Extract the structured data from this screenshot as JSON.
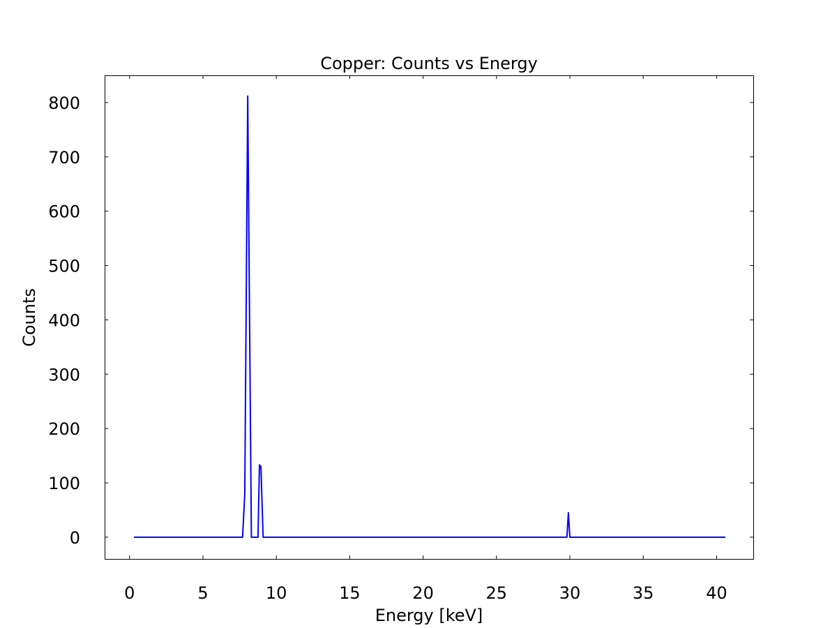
{
  "chart_data": {
    "type": "line",
    "title": "Copper: Counts vs Energy",
    "xlabel": "Energy [keV]",
    "ylabel": "Counts",
    "xlim": [
      -1.7,
      42.5
    ],
    "ylim": [
      -40,
      850
    ],
    "xticks": [
      0,
      5,
      10,
      15,
      20,
      25,
      30,
      35,
      40
    ],
    "yticks": [
      0,
      100,
      200,
      300,
      400,
      500,
      600,
      700,
      800
    ],
    "grid": false,
    "series": [
      {
        "color": "#0000ff",
        "x": [
          0.3,
          7.7,
          7.85,
          8.05,
          8.3,
          8.6,
          8.75,
          8.85,
          8.95,
          9.1,
          29.8,
          29.9,
          30.0,
          40.6
        ],
        "y": [
          0,
          0,
          80,
          812,
          0,
          0,
          0,
          133,
          130,
          0,
          0,
          45,
          0,
          0
        ]
      }
    ]
  }
}
